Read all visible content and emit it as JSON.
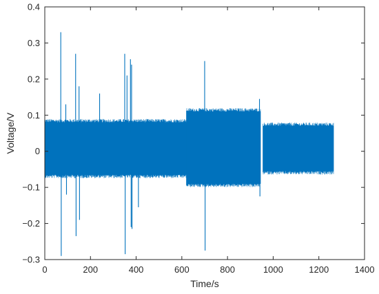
{
  "chart_data": {
    "type": "line",
    "title": "",
    "xlabel": "Time/s",
    "ylabel": "Voltage/V",
    "xlim": [
      0,
      1400
    ],
    "ylim": [
      -0.3,
      0.4
    ],
    "grid": false,
    "x_ticks": [
      0,
      200,
      400,
      600,
      800,
      1000,
      1200,
      1400
    ],
    "y_ticks": [
      -0.3,
      -0.2,
      -0.1,
      0,
      0.1,
      0.2,
      0.3,
      0.4
    ],
    "x_tick_labels": [
      "0",
      "200",
      "400",
      "600",
      "800",
      "1000",
      "1200",
      "1400"
    ],
    "y_tick_labels": [
      "−0.3",
      "−0.2",
      "−0.1",
      "0",
      "0.1",
      "0.2",
      "0.3",
      "0.4"
    ],
    "series": [
      {
        "color": "#0072BD",
        "segments": [
          {
            "x_start": 0,
            "x_end": 620,
            "upper": 0.08,
            "lower": -0.065
          },
          {
            "x_start": 620,
            "x_end": 945,
            "upper": 0.11,
            "lower": -0.09
          },
          {
            "x_start": 955,
            "x_end": 1265,
            "upper": 0.07,
            "lower": -0.055
          }
        ],
        "spikes": [
          {
            "x": 70,
            "y": 0.33
          },
          {
            "x": 72,
            "y": -0.29
          },
          {
            "x": 92,
            "y": 0.13
          },
          {
            "x": 95,
            "y": -0.12
          },
          {
            "x": 135,
            "y": 0.27
          },
          {
            "x": 137,
            "y": -0.235
          },
          {
            "x": 150,
            "y": 0.18
          },
          {
            "x": 152,
            "y": -0.19
          },
          {
            "x": 240,
            "y": 0.16
          },
          {
            "x": 350,
            "y": 0.27
          },
          {
            "x": 352,
            "y": -0.285
          },
          {
            "x": 360,
            "y": 0.21
          },
          {
            "x": 375,
            "y": 0.255
          },
          {
            "x": 378,
            "y": -0.21
          },
          {
            "x": 380,
            "y": 0.24
          },
          {
            "x": 382,
            "y": -0.215
          },
          {
            "x": 410,
            "y": -0.155
          },
          {
            "x": 700,
            "y": 0.25
          },
          {
            "x": 702,
            "y": -0.275
          },
          {
            "x": 940,
            "y": 0.145
          },
          {
            "x": 942,
            "y": -0.125
          }
        ]
      }
    ]
  }
}
